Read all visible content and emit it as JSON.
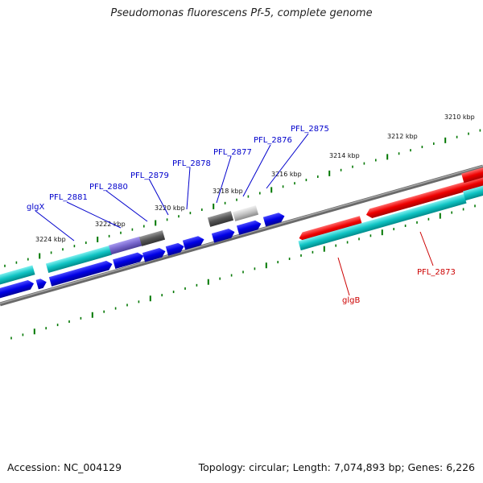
{
  "title": "Pseudomonas fluorescens Pf-5, complete genome",
  "footer": {
    "accession": "Accession: NC_004129",
    "stats": "Topology: circular; Length: 7,074,893 bp; Genes: 6,226"
  },
  "colors": {
    "forward_cds": "#ff0000",
    "reverse_cds": "#0000ee",
    "rna_band": "#00c8c8",
    "selected": "#7766cc",
    "other": "#555555",
    "other_light": "#bbbbbb",
    "tick": "#007700",
    "backbone": "#777777",
    "forward_label": "#cc0000",
    "reverse_label": "#0000cc"
  },
  "scale_labels": [
    "3210 kbp",
    "3212 kbp",
    "3214 kbp",
    "3216 kbp",
    "3218 kbp",
    "3220 kbp",
    "3222 kbp",
    "3224 kbp"
  ],
  "gene_labels": {
    "reverse": [
      "PFL_2875",
      "PFL_2876",
      "PFL_2877",
      "PFL_2878",
      "PFL_2879",
      "PFL_2880",
      "PFL_2881",
      "glgX"
    ],
    "forward": [
      "PFL_2873",
      "glgB"
    ]
  }
}
